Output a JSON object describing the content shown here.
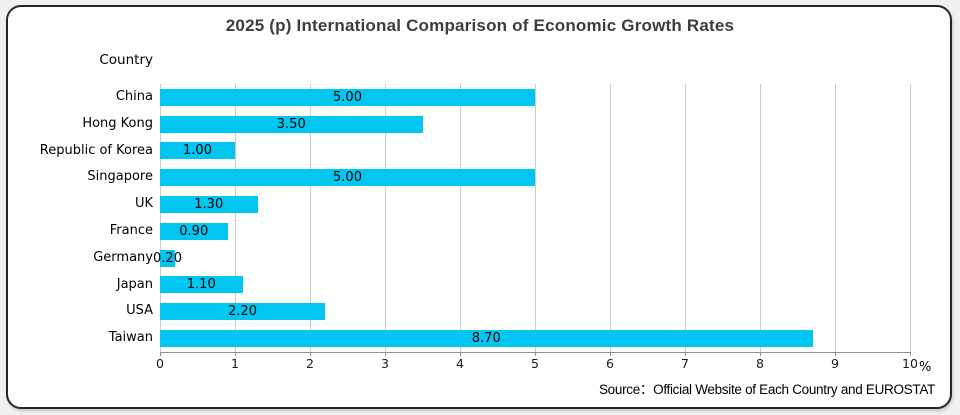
{
  "title": "2025 (p) International Comparison of Economic Growth Rates",
  "axis_header": "Country",
  "unit_label": "%",
  "source": "Source：Official Website of Each Country and EUROSTAT",
  "colors": {
    "bar": "#00C6F0",
    "grid": "#CBCBCB",
    "axis": "#8F8F8F",
    "title": "#3D3D3D",
    "card_border": "#262626",
    "page_background": "#F0F0F0",
    "card_background": "#FFFFFF"
  },
  "chart_data": {
    "type": "bar",
    "orientation": "horizontal",
    "title": "2025 (p) International Comparison of Economic Growth Rates",
    "categories": [
      "China",
      "Hong Kong",
      "Republic of Korea",
      "Singapore",
      "UK",
      "France",
      "Germany",
      "Japan",
      "USA",
      "Taiwan"
    ],
    "values": [
      5.0,
      3.5,
      1.0,
      5.0,
      1.3,
      0.9,
      0.2,
      1.1,
      2.2,
      8.7
    ],
    "value_labels": [
      "5.00",
      "3.50",
      "1.00",
      "5.00",
      "1.30",
      "0.90",
      "0.20",
      "1.10",
      "2.20",
      "8.70"
    ],
    "xlabel": "%",
    "ylabel": "Country",
    "xlim": [
      0,
      10
    ],
    "xticks": [
      0,
      1,
      2,
      3,
      4,
      5,
      6,
      7,
      8,
      9,
      10
    ],
    "grid": true,
    "legend": false
  }
}
